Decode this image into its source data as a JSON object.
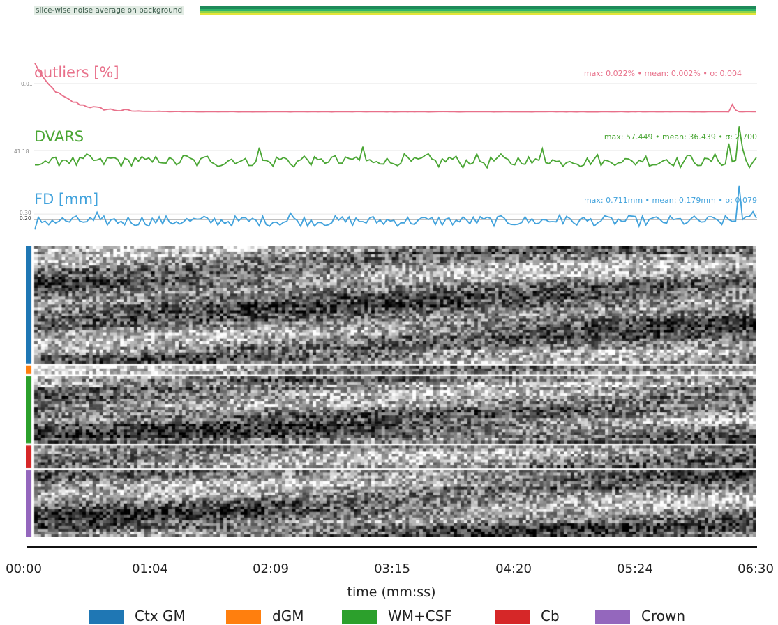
{
  "noise_label": "slice-wise noise average on background",
  "chart_data": [
    {
      "type": "line",
      "title": "outliers [%]",
      "stats": "max: 0.022% • mean: 0.002% • σ: 0.004",
      "ytick": "0.01",
      "color": "#e8708a",
      "ylim": [
        0.0,
        0.022
      ],
      "n_points": 210,
      "shape": "starts near 0.022, decays to ~0.0015 within first 30 frames, then flat near 0.0005 with a spike of ~0.0037 near frame 202"
    },
    {
      "type": "line",
      "title": "DVARS",
      "stats": "max: 57.449 • mean: 36.439 • σ: 2.700",
      "ytick": "41.18",
      "color": "#4aa634",
      "mean": 36.439,
      "max": 57.449,
      "n_points": 210
    },
    {
      "type": "line",
      "title": "FD [mm]",
      "stats": "max: 0.711mm • mean: 0.179mm • σ: 0.079",
      "yticks": [
        "0.30",
        "0.20"
      ],
      "threshold": 0.2,
      "color": "#41a2dc",
      "mean": 0.179,
      "max": 0.711,
      "n_points": 210
    },
    {
      "type": "heatmap",
      "xlabel": "time (mm:ss)",
      "xticks": [
        "00:00",
        "01:04",
        "02:09",
        "03:15",
        "04:20",
        "05:24",
        "06:30"
      ],
      "colormap": "gray",
      "segments": [
        {
          "name": "Ctx GM",
          "color": "#1f77b4",
          "rows": 42
        },
        {
          "name": "dGM",
          "color": "#ff7f0e",
          "rows": 3
        },
        {
          "name": "WM+CSF",
          "color": "#2ca02c",
          "rows": 24
        },
        {
          "name": "Cb",
          "color": "#d62728",
          "rows": 8
        },
        {
          "name": "Crown",
          "color": "#9467bd",
          "rows": 24
        }
      ]
    }
  ],
  "legend": [
    {
      "label": "Ctx GM",
      "color": "#1f77b4"
    },
    {
      "label": "dGM",
      "color": "#ff7f0e"
    },
    {
      "label": "WM+CSF",
      "color": "#2ca02c"
    },
    {
      "label": "Cb",
      "color": "#d62728"
    },
    {
      "label": "Crown",
      "color": "#9467bd"
    }
  ]
}
